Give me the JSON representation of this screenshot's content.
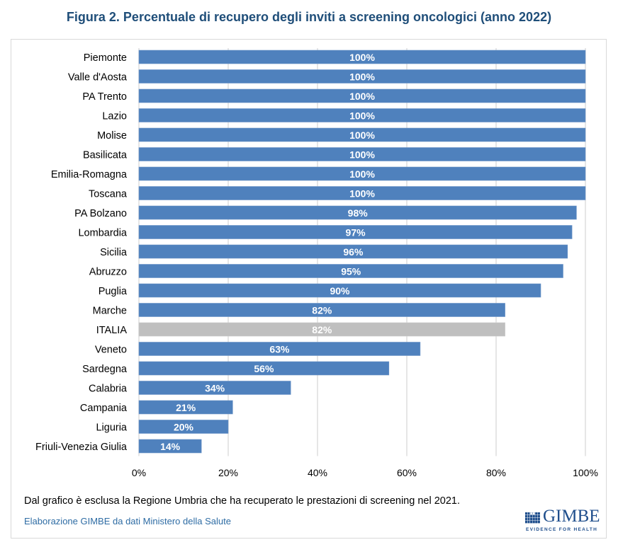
{
  "figure_title": "Figura 2. Percentuale di recupero degli inviti a screening oncologici (anno 2022)",
  "note": "Dal grafico è esclusa la Regione Umbria che ha recuperato le prestazioni di screening nel 2021.",
  "source": "Elaborazione GIMBE da dati Ministero della Salute",
  "logo": {
    "name": "GIMBE",
    "tagline": "EVIDENCE FOR HEALTH",
    "icon": "gimbe-grid-logo-icon"
  },
  "colors": {
    "bar": "#4f81bd",
    "highlight_bar": "#bfbfbf",
    "label": "#ffffff",
    "grid": "#d9d9d9",
    "title": "#1f4e79",
    "source": "#2e6ca4"
  },
  "chart_data": {
    "type": "bar",
    "orientation": "horizontal",
    "title": "Figura 2. Percentuale di recupero degli inviti a screening oncologici (anno 2022)",
    "xlabel": "",
    "ylabel": "",
    "xlim": [
      0,
      100
    ],
    "x_ticks": [
      "0%",
      "20%",
      "40%",
      "60%",
      "80%",
      "100%"
    ],
    "x_tick_values": [
      0,
      20,
      40,
      60,
      80,
      100
    ],
    "grid": true,
    "legend": "none",
    "categories": [
      "Piemonte",
      "Valle d'Aosta",
      "PA Trento",
      "Lazio",
      "Molise",
      "Basilicata",
      "Emilia-Romagna",
      "Toscana",
      "PA Bolzano",
      "Lombardia",
      "Sicilia",
      "Abruzzo",
      "Puglia",
      "Marche",
      "ITALIA",
      "Veneto",
      "Sardegna",
      "Calabria",
      "Campania",
      "Liguria",
      "Friuli-Venezia Giulia"
    ],
    "values": [
      100,
      100,
      100,
      100,
      100,
      100,
      100,
      100,
      98,
      97,
      96,
      95,
      90,
      82,
      82,
      63,
      56,
      34,
      21,
      20,
      14
    ],
    "data_labels": [
      "100%",
      "100%",
      "100%",
      "100%",
      "100%",
      "100%",
      "100%",
      "100%",
      "98%",
      "97%",
      "96%",
      "95%",
      "90%",
      "82%",
      "82%",
      "63%",
      "56%",
      "34%",
      "21%",
      "20%",
      "14%"
    ],
    "highlight": [
      "ITALIA"
    ]
  }
}
